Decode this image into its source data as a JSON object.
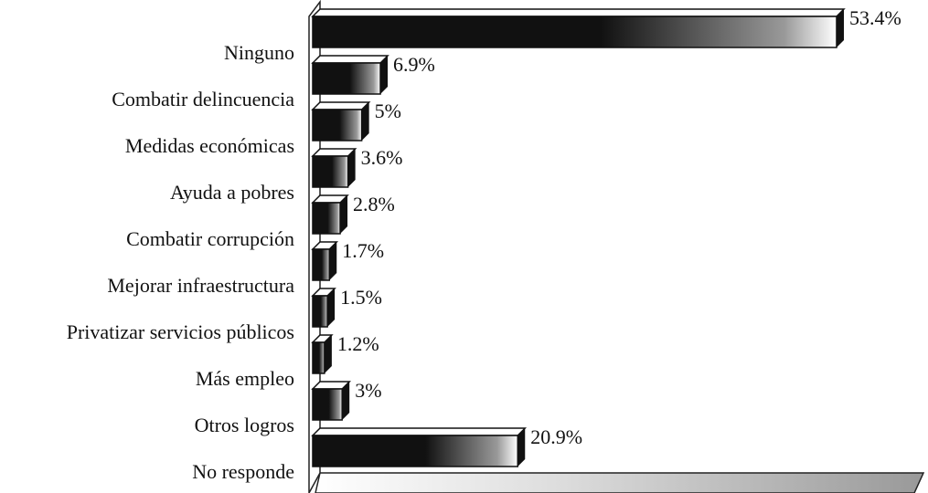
{
  "chart_data": {
    "type": "bar",
    "orientation": "horizontal",
    "categories": [
      "Ninguno",
      "Combatir delincuencia",
      "Medidas económicas",
      "Ayuda a pobres",
      "Combatir corrupción",
      "Mejorar infraestructura",
      "Privatizar servicios públicos",
      "Más empleo",
      "Otros logros",
      "No responde"
    ],
    "values": [
      53.4,
      6.9,
      5,
      3.6,
      2.8,
      1.7,
      1.5,
      1.2,
      3,
      20.9
    ],
    "value_labels": [
      "53.4%",
      "6.9%",
      "5%",
      "3.6%",
      "2.8%",
      "1.7%",
      "1.5%",
      "1.2%",
      "3%",
      "20.9%"
    ],
    "color": "#111111"
  }
}
